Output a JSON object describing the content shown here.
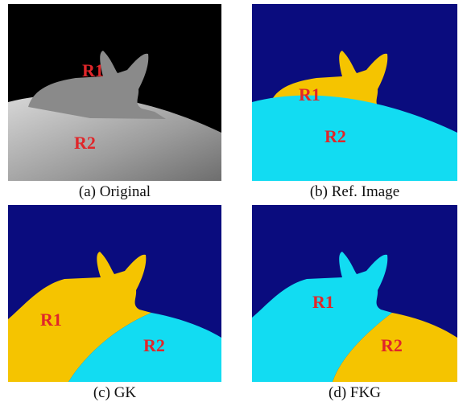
{
  "panels": [
    {
      "caption": "(a) Original",
      "regions": [
        "R1",
        "R2"
      ]
    },
    {
      "caption": "(b) Ref. Image",
      "regions": [
        "R1",
        "R2"
      ]
    },
    {
      "caption": "(c) GK",
      "regions": [
        "R1",
        "R2"
      ]
    },
    {
      "caption": "(d) FKG",
      "regions": [
        "R1",
        "R2"
      ]
    }
  ]
}
